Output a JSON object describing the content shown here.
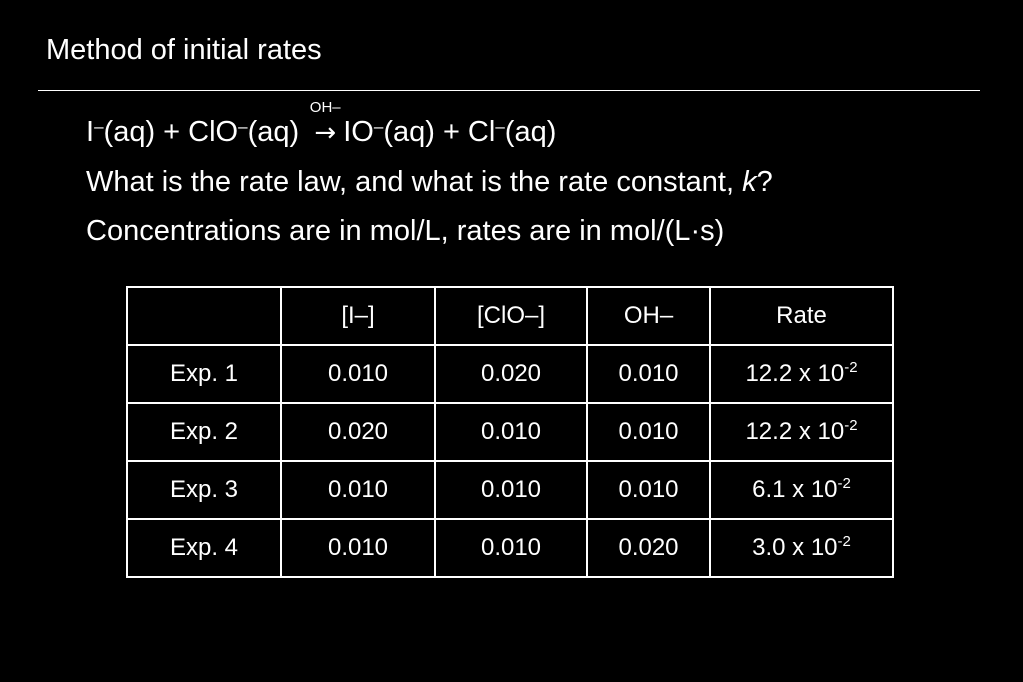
{
  "title": "Method of initial rates",
  "reaction": {
    "r1": "I",
    "r1_charge": "–",
    "r1_state": "(aq) + ClO",
    "r2_charge": "–",
    "r2_state": "(aq) ",
    "arrow": "→",
    "arrow_label": "OH–",
    "p1": "IO",
    "p1_charge": "–",
    "p1_state": "(aq) + Cl",
    "p2_charge": "–",
    "p2_state": "(aq)"
  },
  "question": {
    "text": "What is the rate law, and what is the rate constant, ",
    "var": "k",
    "end": "?"
  },
  "units": "Concentrations are in mol/L, rates are in mol/(L·s)",
  "table": {
    "headers": [
      "",
      "[I–]",
      "[ClO–]",
      "OH–",
      "Rate"
    ],
    "rows": [
      {
        "label": "Exp. 1",
        "i": "0.010",
        "clo": "0.020",
        "oh": "0.010",
        "rate_mant": "12.2 x 10",
        "rate_exp": "-2"
      },
      {
        "label": "Exp. 2",
        "i": "0.020",
        "clo": "0.010",
        "oh": "0.010",
        "rate_mant": "12.2 x 10",
        "rate_exp": "-2"
      },
      {
        "label": "Exp. 3",
        "i": "0.010",
        "clo": "0.010",
        "oh": "0.010",
        "rate_mant": "6.1 x 10",
        "rate_exp": "-2"
      },
      {
        "label": "Exp. 4",
        "i": "0.010",
        "clo": "0.010",
        "oh": "0.020",
        "rate_mant": "3.0 x 10",
        "rate_exp": "-2"
      }
    ]
  }
}
